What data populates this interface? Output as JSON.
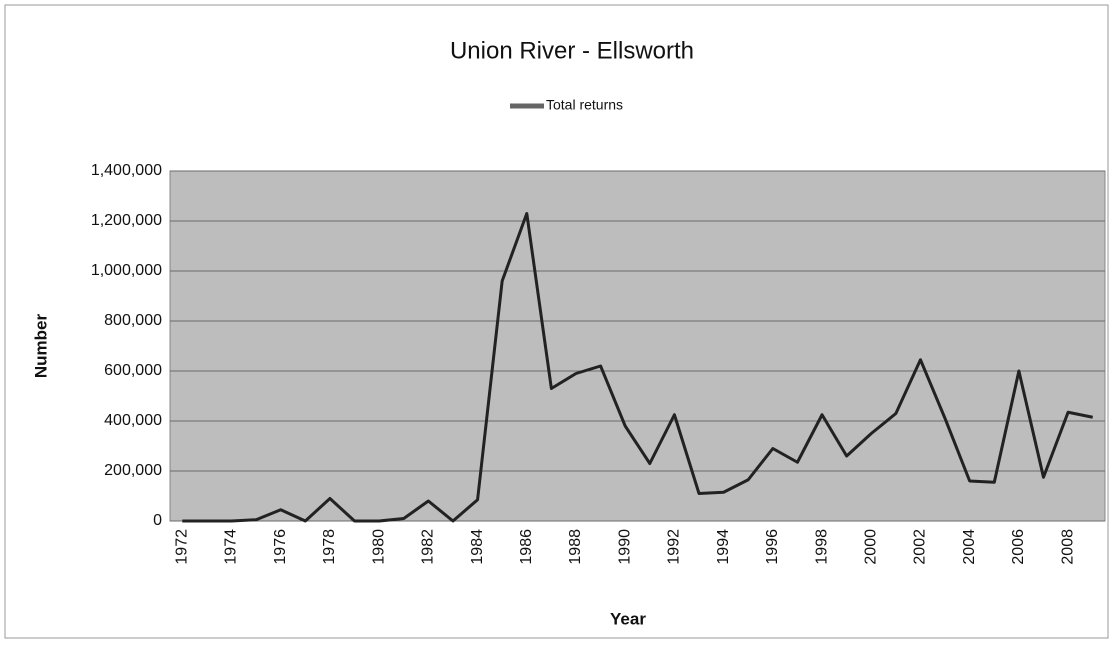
{
  "chart_data": {
    "type": "line",
    "title": "Union River - Ellsworth",
    "x_label": "Year",
    "y_label": "Number",
    "categories": [
      "1972",
      null,
      "1974",
      null,
      "1976",
      null,
      "1978",
      null,
      "1980",
      null,
      "1982",
      null,
      "1984",
      null,
      "1986",
      null,
      "1988",
      null,
      "1990",
      null,
      "1992",
      null,
      "1994",
      null,
      "1996",
      null,
      "1998",
      null,
      "2000",
      null,
      "2002",
      null,
      "2004",
      null,
      "2006",
      null,
      "2008",
      null
    ],
    "series": [
      {
        "name": "Total returns",
        "color": "#222222",
        "values": [
          0,
          0,
          0,
          5000,
          45000,
          0,
          90000,
          0,
          0,
          10000,
          80000,
          0,
          85000,
          960000,
          1230000,
          530000,
          590000,
          620000,
          380000,
          230000,
          425000,
          110000,
          115000,
          165000,
          290000,
          235000,
          425000,
          260000,
          350000,
          430000,
          645000,
          410000,
          160000,
          155000,
          600000,
          175000,
          435000,
          415000
        ]
      }
    ],
    "ylim": [
      0,
      1400000
    ],
    "yticks": [
      0,
      {
        "value": 200000,
        "label": "200,000"
      },
      {
        "value": 400000,
        "label": "400,000"
      },
      {
        "value": 600000,
        "label": "600,000"
      },
      {
        "value": 800000,
        "label": "800,000"
      },
      {
        "value": 1000000,
        "label": "1,000,000"
      },
      {
        "value": 1200000,
        "label": "1,200,000"
      },
      {
        "value": 1400000,
        "label": "1,400,000"
      }
    ],
    "grid": true,
    "legend": "top"
  }
}
